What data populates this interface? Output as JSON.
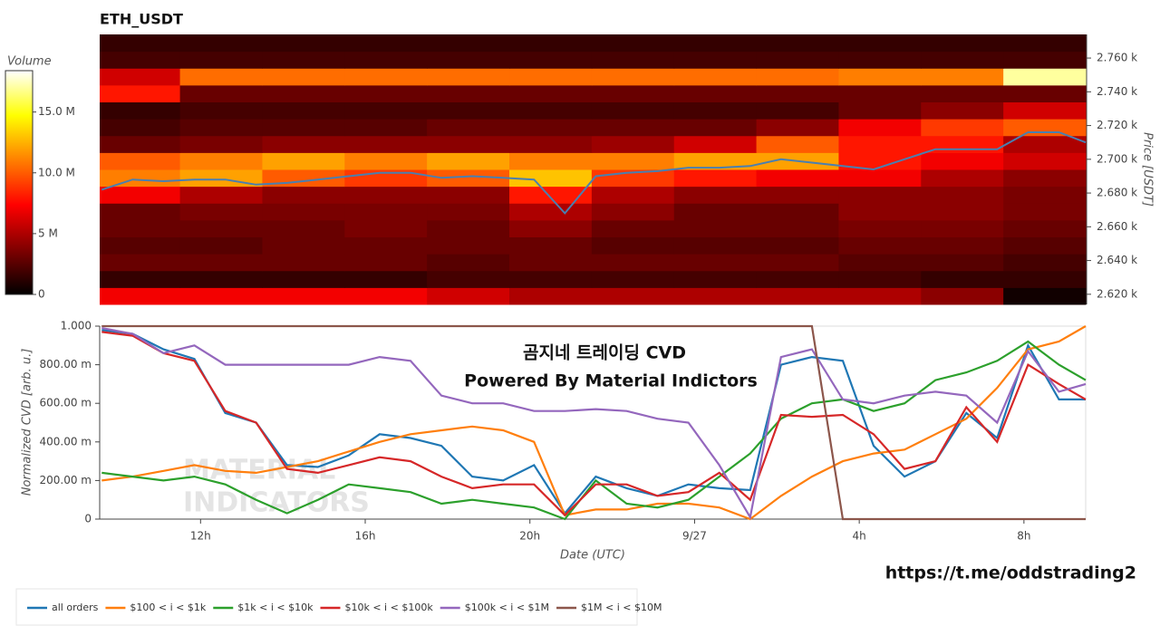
{
  "chart_data": [
    {
      "type": "heatmap",
      "title": "ETH_USDT",
      "ylabel": "Price [USDT]",
      "xlim": [
        9.55,
        33.5
      ],
      "ylim": [
        2.614,
        2.774
      ],
      "x_bins": [
        9.55,
        11.5,
        13.5,
        15.5,
        17.5,
        19.5,
        21.5,
        23.5,
        25.5,
        27.5,
        29.5,
        31.5,
        33.5
      ],
      "y_bins": [
        2.614,
        2.624,
        2.634,
        2.644,
        2.654,
        2.664,
        2.674,
        2.684,
        2.694,
        2.704,
        2.714,
        2.724,
        2.734,
        2.744,
        2.754,
        2.764,
        2.774
      ],
      "yticks": [
        {
          "value": 2.62,
          "label": "2.620 k"
        },
        {
          "value": 2.64,
          "label": "2.640 k"
        },
        {
          "value": 2.66,
          "label": "2.660 k"
        },
        {
          "value": 2.68,
          "label": "2.680 k"
        },
        {
          "value": 2.7,
          "label": "2.700 k"
        },
        {
          "value": 2.72,
          "label": "2.720 k"
        },
        {
          "value": 2.74,
          "label": "2.740 k"
        },
        {
          "value": 2.76,
          "label": "2.760 k"
        }
      ],
      "z": [
        [
          7,
          7,
          7,
          7,
          6,
          5,
          5,
          5,
          5,
          5,
          4,
          0.5
        ],
        [
          1.5,
          1.5,
          1.5,
          1.5,
          2,
          2,
          2,
          2,
          2,
          2,
          1.5,
          1.5
        ],
        [
          3,
          3,
          3,
          3,
          2.5,
          3,
          3,
          3,
          3,
          2.5,
          2.5,
          2
        ],
        [
          2.5,
          2.5,
          3,
          3,
          3,
          3,
          2.5,
          2.5,
          2.5,
          3,
          3,
          2.5
        ],
        [
          3,
          3,
          3,
          3.5,
          3,
          4,
          3,
          3,
          3,
          3.5,
          3.5,
          3
        ],
        [
          3,
          3.5,
          3.5,
          3.5,
          3.5,
          5,
          4,
          3,
          3,
          4,
          4,
          3.5
        ],
        [
          7,
          5,
          4,
          4,
          4,
          8,
          5,
          4,
          4,
          4,
          4,
          3.5
        ],
        [
          11,
          12,
          10,
          9,
          10,
          13,
          9,
          8,
          7,
          7,
          5,
          4
        ],
        [
          10,
          11,
          12,
          11,
          12,
          11,
          11,
          12,
          12,
          8,
          7,
          6
        ],
        [
          3,
          3.5,
          4,
          4,
          4,
          4,
          4.5,
          6,
          10,
          8,
          8,
          5
        ],
        [
          2,
          2.5,
          2.5,
          2.5,
          3,
          3,
          3,
          3,
          4,
          7,
          9,
          10
        ],
        [
          1.5,
          2,
          2,
          2,
          2,
          2,
          2,
          2,
          2,
          3,
          4,
          6
        ],
        [
          8,
          3,
          3,
          3,
          3,
          3,
          3,
          3,
          3,
          3,
          3,
          3
        ],
        [
          6,
          10.5,
          10.5,
          10.5,
          10.5,
          10.5,
          10.5,
          10.5,
          10.5,
          11,
          11,
          17
        ],
        [
          2,
          2,
          2,
          2,
          2,
          2,
          2,
          2,
          2,
          2,
          2,
          2
        ],
        [
          1.5,
          1.5,
          1.5,
          1.5,
          1.5,
          1.5,
          1.5,
          1.5,
          1.5,
          1.5,
          1.5,
          1.5
        ]
      ],
      "colorbar": {
        "label": "Volume",
        "zlim": [
          0,
          18.4
        ],
        "ticks": [
          0,
          {
            "value": 5,
            "label": "5 M"
          },
          {
            "value": 10,
            "label": "10.0 M"
          },
          {
            "value": 15,
            "label": "15.0 M"
          }
        ]
      },
      "price_line": {
        "color": "#4a7fb0",
        "x": [
          9.6,
          10.35,
          11.1,
          11.85,
          12.6,
          13.35,
          14.1,
          14.85,
          15.6,
          16.35,
          17.1,
          17.85,
          18.6,
          19.35,
          20.1,
          20.85,
          21.6,
          22.35,
          23.1,
          23.85,
          24.6,
          25.35,
          26.1,
          26.85,
          27.6,
          28.35,
          29.1,
          29.85,
          30.6,
          31.35,
          32.1,
          32.85,
          33.5
        ],
        "values": [
          2.682,
          2.688,
          2.687,
          2.688,
          2.688,
          2.685,
          2.686,
          2.688,
          2.69,
          2.692,
          2.692,
          2.689,
          2.69,
          2.689,
          2.688,
          2.668,
          2.69,
          2.692,
          2.693,
          2.695,
          2.695,
          2.696,
          2.7,
          2.698,
          2.696,
          2.694,
          2.7,
          2.706,
          2.706,
          2.706,
          2.716,
          2.716,
          2.71
        ]
      }
    },
    {
      "type": "line",
      "xlabel": "Date (UTC)",
      "ylabel": "Normalized CVD [arb. u.]",
      "xlim": [
        9.55,
        33.5
      ],
      "ylim": [
        0,
        1
      ],
      "xticks": [
        {
          "value": 12,
          "label": "12h"
        },
        {
          "value": 16,
          "label": "16h"
        },
        {
          "value": 20,
          "label": "20h"
        },
        {
          "value": 24,
          "label": "9/27"
        },
        {
          "value": 28,
          "label": "4h"
        },
        {
          "value": 32,
          "label": "8h"
        }
      ],
      "yticks": [
        0,
        {
          "value": 0.2,
          "label": "200.00 m"
        },
        {
          "value": 0.4,
          "label": "400.00 m"
        },
        {
          "value": 0.6,
          "label": "600.00 m"
        },
        {
          "value": 0.8,
          "label": "800.00 m"
        },
        {
          "value": 1,
          "label": "1.000"
        }
      ],
      "annotations": [
        "곰지네 트레이딩 CVD",
        "Powered By Material Indictors"
      ],
      "watermark": [
        "MATERIAL",
        "INDICATORS"
      ],
      "link": "https://t.me/oddstrading2",
      "legend": "bottom",
      "x": [
        9.6,
        10.35,
        11.1,
        11.85,
        12.6,
        13.35,
        14.1,
        14.85,
        15.6,
        16.35,
        17.1,
        17.85,
        18.6,
        19.35,
        20.1,
        20.85,
        21.6,
        22.35,
        23.1,
        23.85,
        24.6,
        25.35,
        26.1,
        26.85,
        27.6,
        28.35,
        29.1,
        29.85,
        30.6,
        31.35,
        32.1,
        32.85,
        33.5
      ],
      "series": [
        {
          "name": "all orders",
          "color": "#1f77b4",
          "values": [
            0.98,
            0.96,
            0.88,
            0.83,
            0.55,
            0.5,
            0.28,
            0.27,
            0.33,
            0.44,
            0.42,
            0.38,
            0.22,
            0.2,
            0.28,
            0.03,
            0.22,
            0.16,
            0.12,
            0.18,
            0.16,
            0.15,
            0.8,
            0.84,
            0.82,
            0.38,
            0.22,
            0.3,
            0.55,
            0.42,
            0.9,
            0.62,
            0.62
          ]
        },
        {
          "name": "$100 < i < $1k",
          "color": "#ff7f0e",
          "values": [
            0.2,
            0.22,
            0.25,
            0.28,
            0.25,
            0.24,
            0.27,
            0.3,
            0.35,
            0.4,
            0.44,
            0.46,
            0.48,
            0.46,
            0.4,
            0.02,
            0.05,
            0.05,
            0.08,
            0.08,
            0.06,
            0,
            0.12,
            0.22,
            0.3,
            0.34,
            0.36,
            0.44,
            0.52,
            0.68,
            0.88,
            0.92,
            1
          ]
        },
        {
          "name": "$1k < i < $10k",
          "color": "#2ca02c",
          "values": [
            0.24,
            0.22,
            0.2,
            0.22,
            0.18,
            0.1,
            0.03,
            0.1,
            0.18,
            0.16,
            0.14,
            0.08,
            0.1,
            0.08,
            0.06,
            0,
            0.2,
            0.08,
            0.06,
            0.1,
            0.22,
            0.34,
            0.52,
            0.6,
            0.62,
            0.56,
            0.6,
            0.72,
            0.76,
            0.82,
            0.92,
            0.8,
            0.72
          ]
        },
        {
          "name": "$10k < i < $100k",
          "color": "#d62728",
          "values": [
            0.97,
            0.95,
            0.86,
            0.82,
            0.56,
            0.5,
            0.26,
            0.24,
            0.28,
            0.32,
            0.3,
            0.22,
            0.16,
            0.18,
            0.18,
            0.02,
            0.18,
            0.18,
            0.12,
            0.14,
            0.24,
            0.1,
            0.54,
            0.53,
            0.54,
            0.44,
            0.26,
            0.3,
            0.58,
            0.4,
            0.8,
            0.7,
            0.62
          ]
        },
        {
          "name": "$100k < i < $1M",
          "color": "#9467bd",
          "values": [
            0.99,
            0.96,
            0.86,
            0.9,
            0.8,
            0.8,
            0.8,
            0.8,
            0.8,
            0.84,
            0.82,
            0.64,
            0.6,
            0.6,
            0.56,
            0.56,
            0.57,
            0.56,
            0.52,
            0.5,
            0.28,
            0.01,
            0.84,
            0.88,
            0.62,
            0.6,
            0.64,
            0.66,
            0.64,
            0.5,
            0.87,
            0.66,
            0.7
          ]
        },
        {
          "name": "$1M < i < $10M",
          "color": "#8c564b",
          "values": [
            1,
            1,
            1,
            1,
            1,
            1,
            1,
            1,
            1,
            1,
            1,
            1,
            1,
            1,
            1,
            1,
            1,
            1,
            1,
            1,
            1,
            1,
            1,
            1,
            0,
            0,
            0,
            0,
            0,
            0,
            0,
            0,
            0
          ]
        }
      ]
    }
  ]
}
